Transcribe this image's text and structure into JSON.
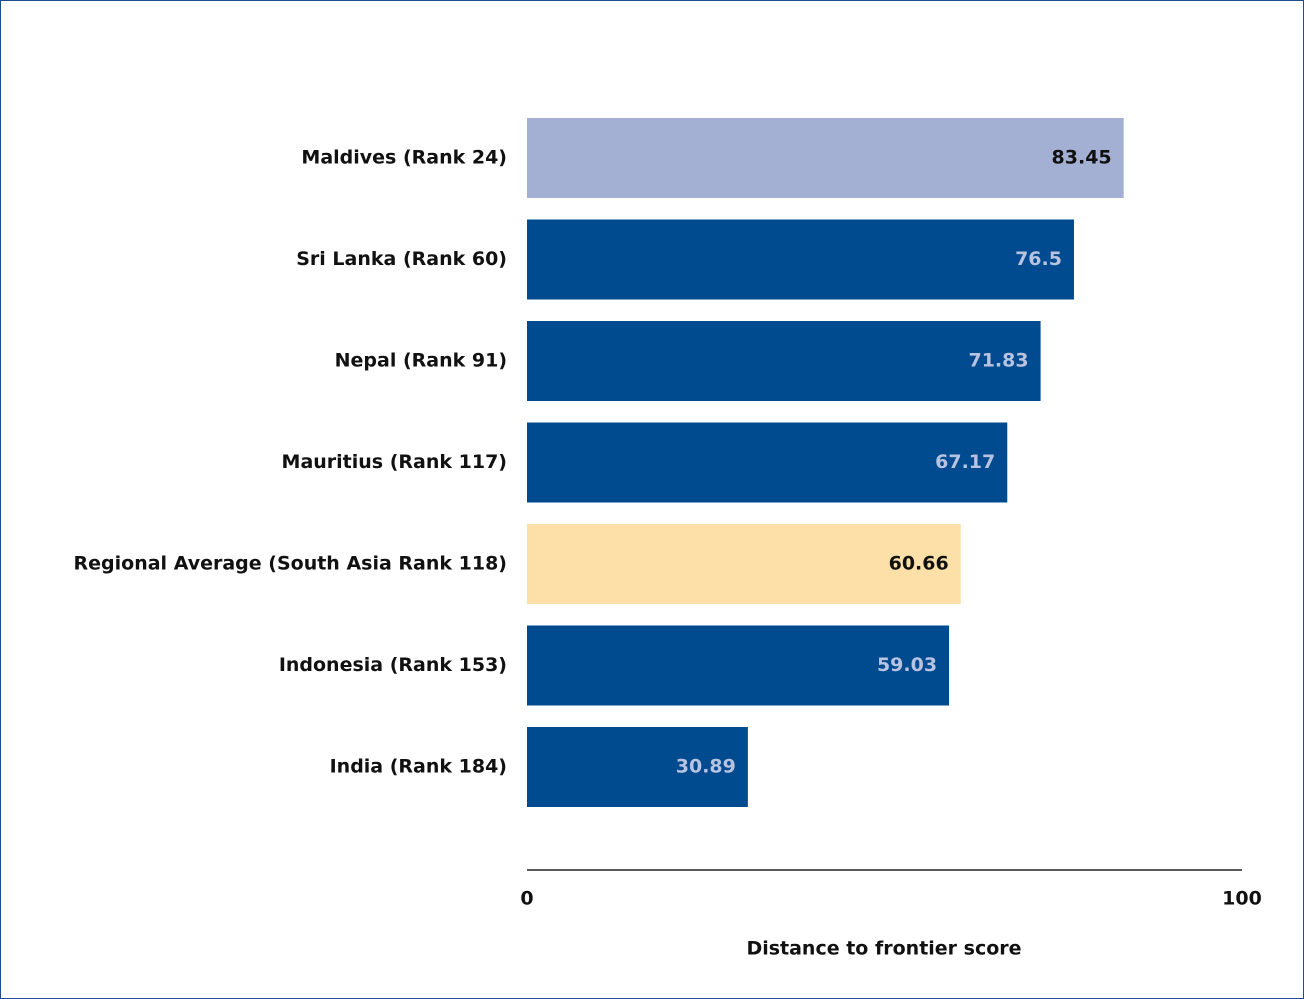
{
  "chart_data": {
    "type": "bar",
    "orientation": "horizontal",
    "categories": [
      "Maldives (Rank 24)",
      "Sri Lanka (Rank 60)",
      "Nepal (Rank 91)",
      "Mauritius (Rank 117)",
      "Regional Average (South Asia Rank 118)",
      "Indonesia (Rank 153)",
      "India (Rank 184)"
    ],
    "values": [
      83.45,
      76.5,
      71.83,
      67.17,
      60.66,
      59.03,
      30.89
    ],
    "colors": [
      "#a3b0d3",
      "#004a8f",
      "#004a8f",
      "#004a8f",
      "#fde0a8",
      "#004a8f",
      "#004a8f"
    ],
    "xlim": [
      0,
      100
    ],
    "xticks": [
      0,
      100
    ],
    "xlabel": "Distance to frontier score"
  }
}
